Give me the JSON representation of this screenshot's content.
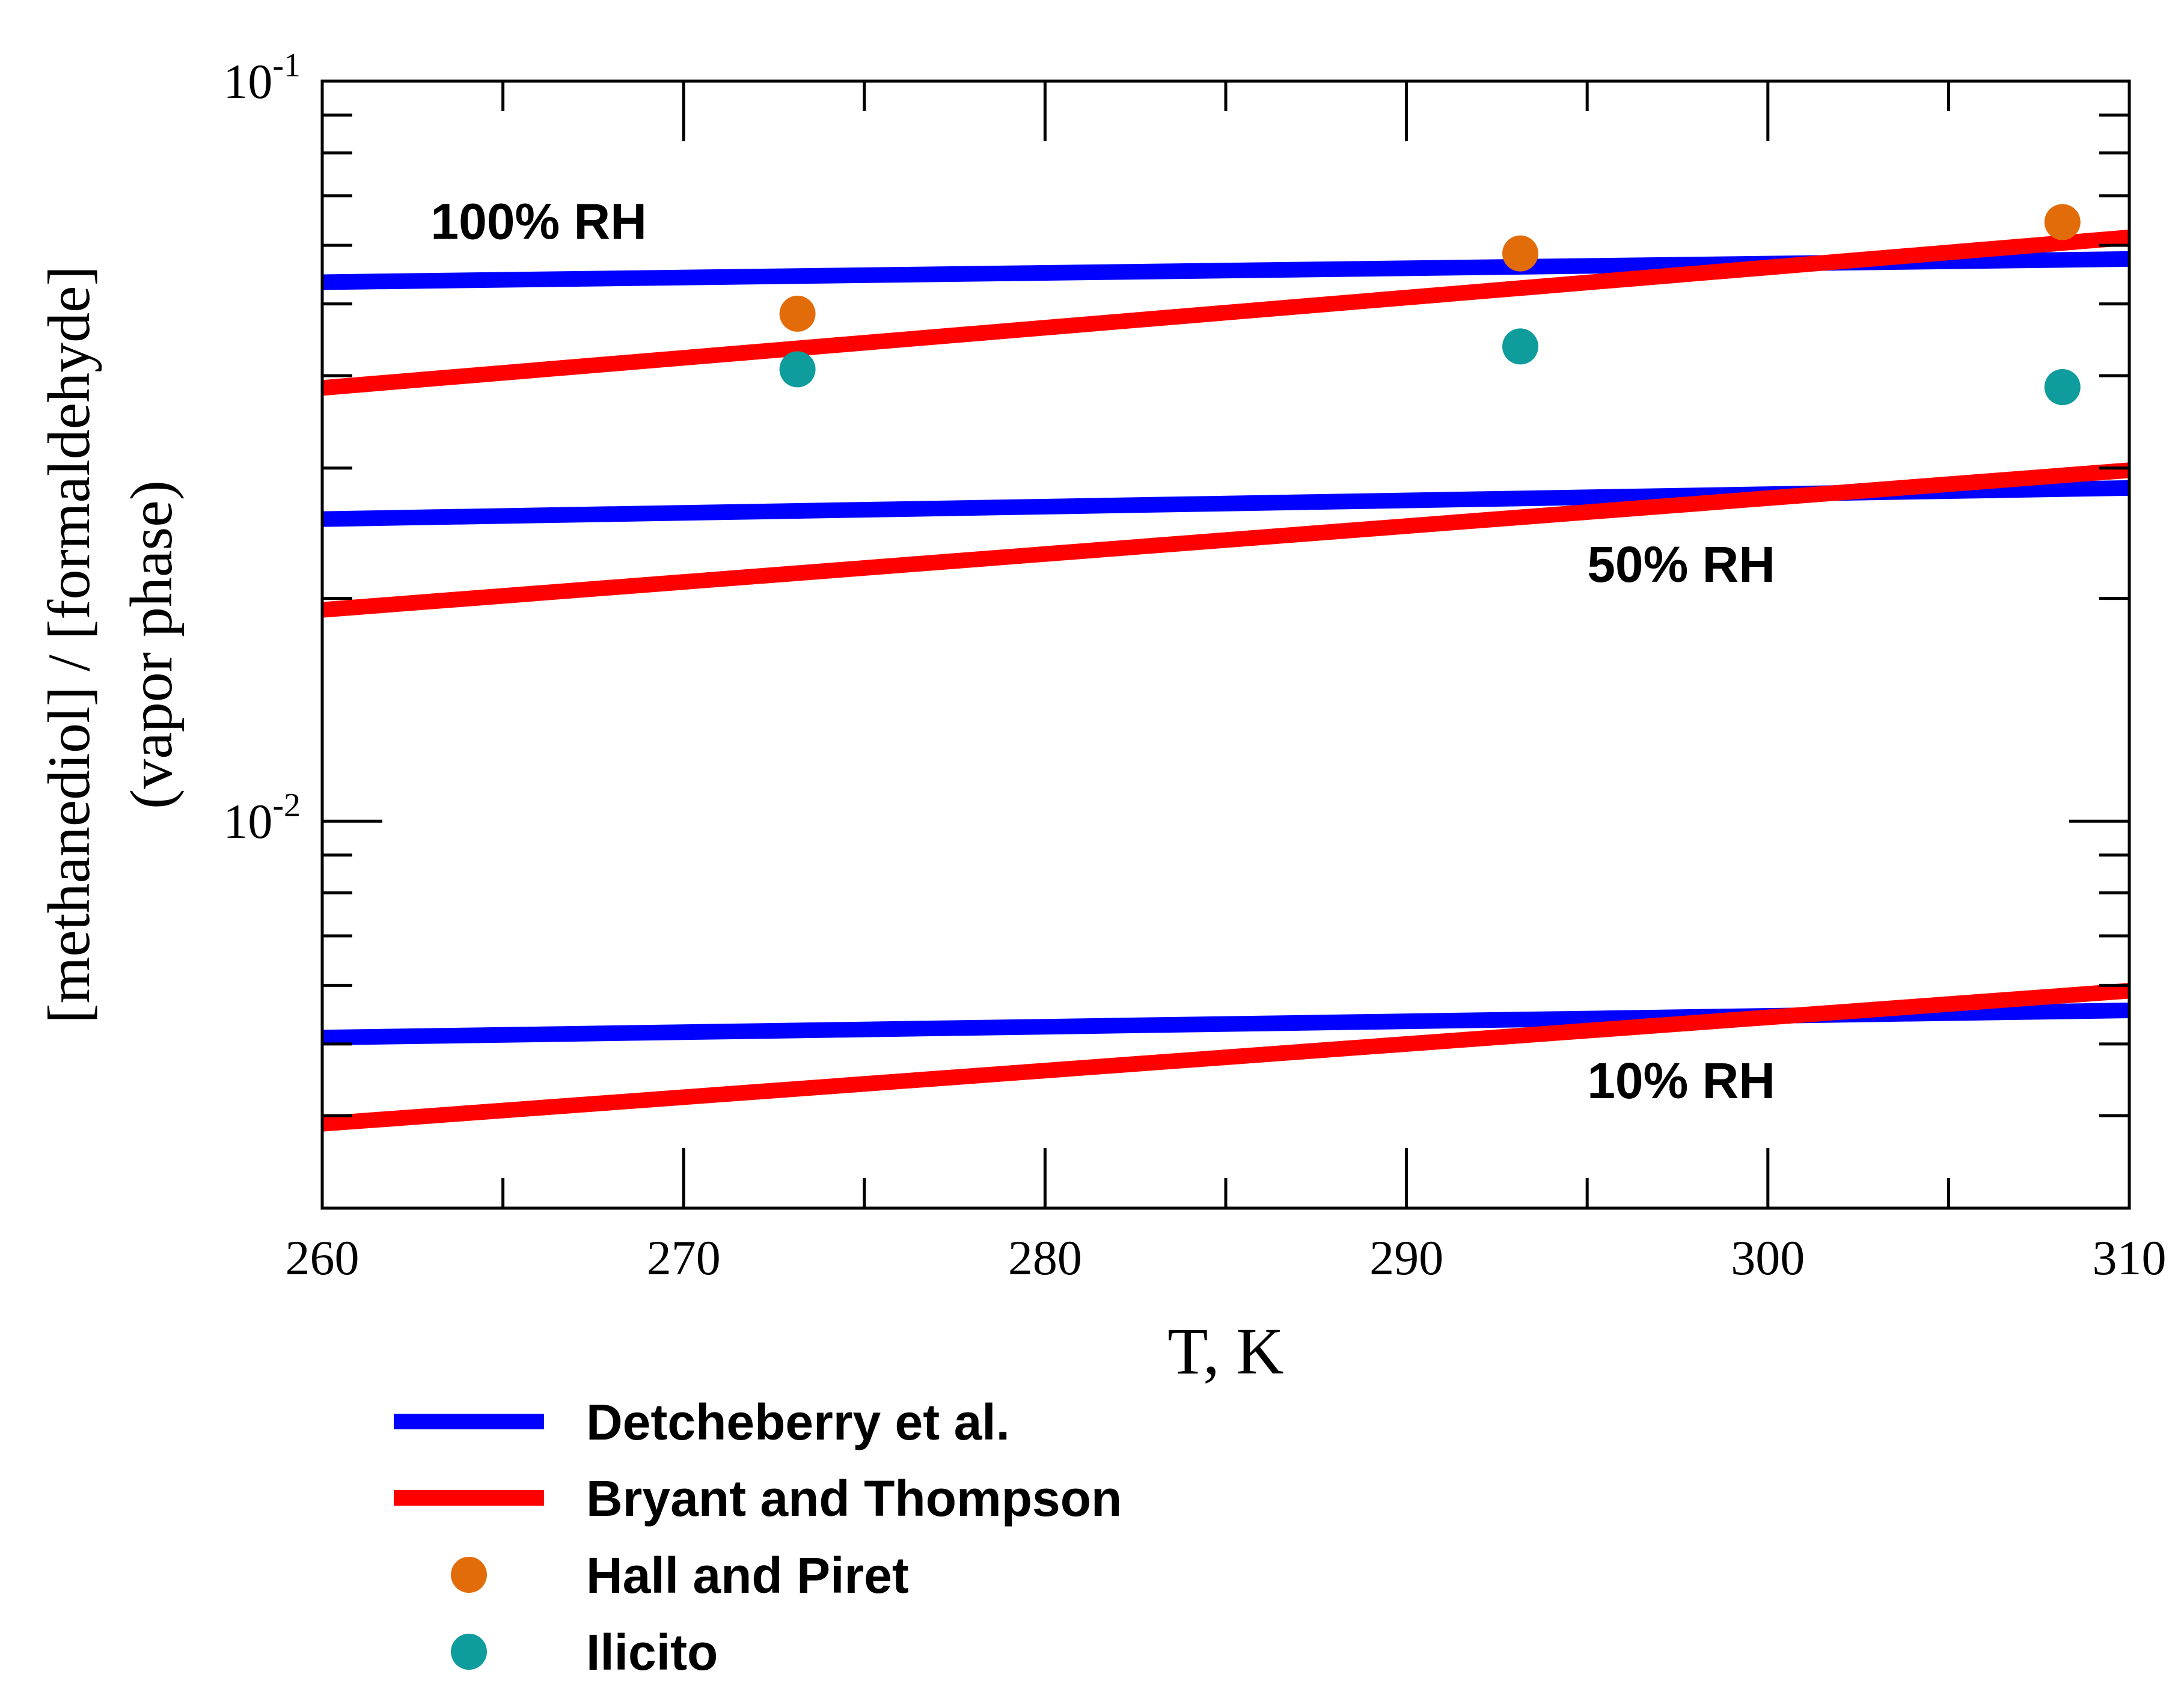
{
  "chart_data": {
    "type": "line",
    "title": "",
    "xlabel": "T, K",
    "ylabel_line1": "[methanediol] / [formaldehyde]",
    "ylabel_line2": "(vapor phase)",
    "xlim": [
      260,
      310
    ],
    "ylim": [
      0.003,
      0.1
    ],
    "yscale": "log",
    "x_ticks": [
      260,
      270,
      280,
      290,
      300,
      310
    ],
    "x_tick_labels": [
      "260",
      "270",
      "280",
      "290",
      "300",
      "310"
    ],
    "y_major_ticks": [
      0.01,
      0.1
    ],
    "y_tick_labels": [
      {
        "base": "10",
        "exp": "-2"
      },
      {
        "base": "10",
        "exp": "-1"
      }
    ],
    "y_minor_ticks": [
      0.004,
      0.005,
      0.006,
      0.007,
      0.008,
      0.009,
      0.02,
      0.03,
      0.04,
      0.05,
      0.06,
      0.07,
      0.08,
      0.09
    ],
    "series": [
      {
        "name": "Detcheberry et al.",
        "group": "100% RH",
        "kind": "line",
        "color": "#0000ff",
        "x": [
          260,
          310
        ],
        "y": [
          0.0535,
          0.0575
        ]
      },
      {
        "name": "Bryant and Thompson",
        "group": "100% RH",
        "kind": "line",
        "color": "#ff0000",
        "x": [
          260,
          310
        ],
        "y": [
          0.0385,
          0.0615
        ]
      },
      {
        "name": "Detcheberry et al.",
        "group": "50% RH",
        "kind": "line",
        "color": "#0000ff",
        "x": [
          260,
          310
        ],
        "y": [
          0.0256,
          0.0282
        ]
      },
      {
        "name": "Bryant and Thompson",
        "group": "50% RH",
        "kind": "line",
        "color": "#ff0000",
        "x": [
          260,
          310
        ],
        "y": [
          0.0193,
          0.0298
        ]
      },
      {
        "name": "Detcheberry et al.",
        "group": "10% RH",
        "kind": "line",
        "color": "#0000ff",
        "x": [
          260,
          310
        ],
        "y": [
          0.0051,
          0.00555
        ]
      },
      {
        "name": "Bryant and Thompson",
        "group": "10% RH",
        "kind": "line",
        "color": "#ff0000",
        "x": [
          260,
          310
        ],
        "y": [
          0.0039,
          0.0059
        ]
      },
      {
        "name": "Hall and Piret",
        "kind": "scatter",
        "color": "#e36c0a",
        "x": [
          273.15,
          293.15,
          308.15
        ],
        "y": [
          0.0485,
          0.0585,
          0.0645
        ]
      },
      {
        "name": "Ilicito",
        "kind": "scatter",
        "color": "#0e9c9c",
        "x": [
          273.15,
          293.15,
          308.15
        ],
        "y": [
          0.0408,
          0.0438,
          0.0386
        ]
      }
    ],
    "annotations": [
      {
        "text": "100% RH",
        "x": 263,
        "y": 0.0645
      },
      {
        "text": "50% RH",
        "x": 295,
        "y": 0.0222
      },
      {
        "text": "10% RH",
        "x": 295,
        "y": 0.00445
      }
    ],
    "legend": {
      "placement": "bottom",
      "entries": [
        {
          "label": "Detcheberry et al.",
          "marker": "line",
          "color": "#0000ff"
        },
        {
          "label": "Bryant and Thompson",
          "marker": "line",
          "color": "#ff0000"
        },
        {
          "label": "Hall and Piret",
          "marker": "circle",
          "color": "#e36c0a"
        },
        {
          "label": "Ilicito",
          "marker": "circle",
          "color": "#0e9c9c"
        }
      ]
    },
    "grid": false
  }
}
